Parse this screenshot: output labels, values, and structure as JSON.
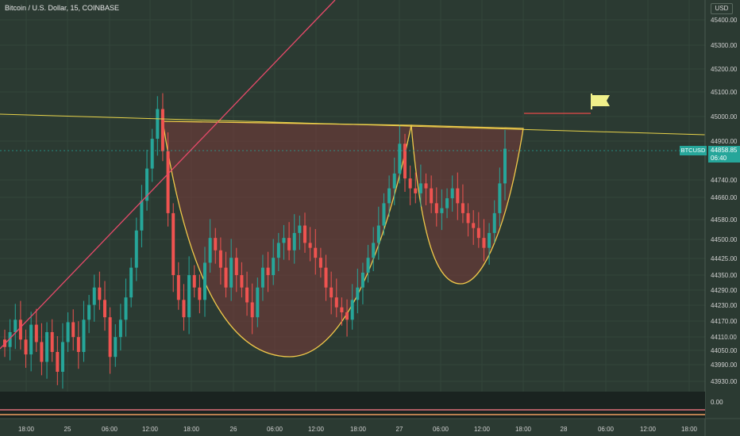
{
  "header": {
    "title": "Bitcoin / U.S. Dollar, 15, COINBASE"
  },
  "currency": "USD",
  "indicator_value": "0.00",
  "price_badge": {
    "symbol": "BTCUSD",
    "price": "44858.85",
    "countdown": "06:40"
  },
  "colors": {
    "background": "#2b3a32",
    "grid": "#33453b",
    "bull": "#26a69a",
    "bear": "#ef5350",
    "trendline": "#e84a6a",
    "neckline": "#e8d34a",
    "cup_fill": "#7a3a3a",
    "cup_stroke": "#f0c84a",
    "flag": "#f0f08a",
    "indicator_bg": "#1a2320",
    "badge": "#26a69a"
  },
  "chart_data": {
    "type": "candlestick",
    "title": "Bitcoin / U.S. Dollar, 15, COINBASE",
    "ylim": [
      43880,
      45460
    ],
    "y_ticks": [
      "45400.00",
      "45300.00",
      "45200.00",
      "45100.00",
      "45000.00",
      "44900.00",
      "44740.00",
      "44660.00",
      "44580.00",
      "44500.00",
      "44425.00",
      "44350.00",
      "44290.00",
      "44230.00",
      "44170.00",
      "44110.00",
      "44050.00",
      "43990.00",
      "43930.00"
    ],
    "x_ticks": [
      "18:00",
      "25",
      "06:00",
      "12:00",
      "18:00",
      "26",
      "06:00",
      "12:00",
      "18:00",
      "27",
      "06:00",
      "12:00",
      "18:00",
      "28",
      "06:00",
      "12:00",
      "18:00"
    ],
    "last_price": 44858.85,
    "series": [
      {
        "values": [
          44060,
          44120,
          44170,
          44090,
          44030,
          44150,
          44080,
          44000,
          44120,
          44040,
          43960,
          44080,
          44160,
          44100,
          44040,
          44170,
          44230,
          44300,
          44250,
          44180,
          44020,
          44100,
          44170,
          44260,
          44380,
          44530,
          44650,
          44780,
          44900,
          45020,
          44850,
          44600,
          44350,
          44250,
          44180,
          44350,
          44300,
          44250,
          44400,
          44500,
          44450,
          44380,
          44300,
          44420,
          44350,
          44300,
          44240,
          44180,
          44300,
          44380,
          44350,
          44420,
          44480,
          44500,
          44450,
          44520,
          44550,
          44480,
          44460,
          44420,
          44380,
          44300,
          44260,
          44220,
          44200,
          44170,
          44250,
          44300,
          44360,
          44420,
          44480,
          44550,
          44640,
          44700,
          44760,
          44880,
          44740,
          44700,
          44680,
          44720,
          44700,
          44640,
          44600,
          44620,
          44660,
          44700,
          44640,
          44600,
          44560,
          44540,
          44500,
          44460,
          44520,
          44600,
          44720,
          44860
        ]
      }
    ]
  }
}
